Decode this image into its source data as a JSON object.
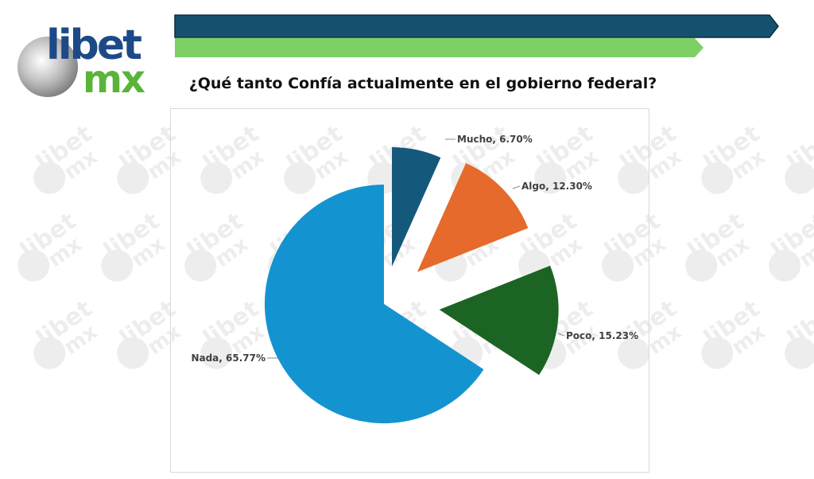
{
  "logo": {
    "line1": "libet",
    "line2": "mx"
  },
  "watermark_text": {
    "line1": "libet",
    "line2": "mx"
  },
  "colors": {
    "header_bar_dark": "#15516f",
    "header_bar_light": "#7dd064",
    "logo_blue": "#1d4a87",
    "logo_green": "#5ab43a"
  },
  "chart_data": {
    "type": "pie",
    "title": "¿Qué tanto Confía actualmente en el gobierno federal?",
    "slices": [
      {
        "label": "Mucho",
        "value": 6.7,
        "display": "Mucho, 6.70%",
        "color": "#14587c"
      },
      {
        "label": "Algo",
        "value": 12.3,
        "display": "Algo, 12.30%",
        "color": "#e56a2c"
      },
      {
        "label": "Poco",
        "value": 15.23,
        "display": "Poco, 15.23%",
        "color": "#1c6424"
      },
      {
        "label": "Nada",
        "value": 65.77,
        "display": "Nada, 65.77%",
        "color": "#1493d1"
      }
    ]
  }
}
